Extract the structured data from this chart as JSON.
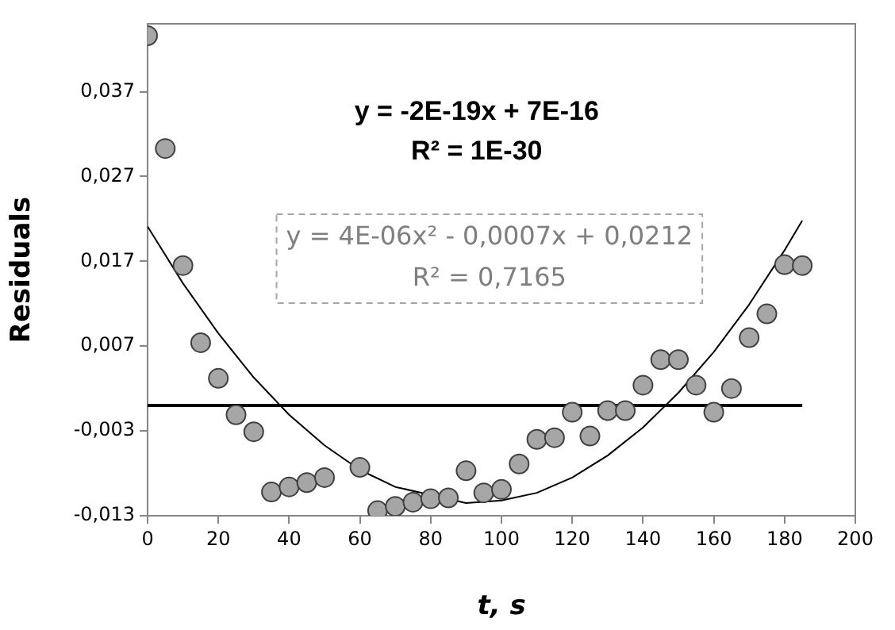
{
  "chart_data": {
    "type": "scatter",
    "xlabel": "t, s",
    "ylabel": "Residuals",
    "xlim": [
      0,
      200
    ],
    "xticks": [
      0,
      20,
      40,
      60,
      80,
      100,
      120,
      140,
      160,
      180,
      200
    ],
    "ylim": [
      -0.013,
      0.045
    ],
    "yticks": [
      {
        "value": -0.013,
        "label": "-0,013"
      },
      {
        "value": -0.003,
        "label": "-0,003"
      },
      {
        "value": 0.007,
        "label": "0,007"
      },
      {
        "value": 0.017,
        "label": "0,017"
      },
      {
        "value": 0.027,
        "label": "0,027"
      },
      {
        "value": 0.037,
        "label": "0,037"
      }
    ],
    "grid": false,
    "legend": false,
    "annotations": [
      "y = -2E-19x + 7E-16\nR² = 1E-30",
      "y = 4E-06x² - 0,0007x + 0,0212\nR² = 0,7165"
    ],
    "series": [
      {
        "type": "scatter",
        "marker": "circle",
        "color": "#a6a6a6",
        "x": [
          0,
          5,
          10,
          15,
          20,
          25,
          30,
          35,
          40,
          45,
          50,
          60,
          65,
          70,
          75,
          80,
          85,
          90,
          95,
          100,
          105,
          110,
          115,
          120,
          125,
          130,
          135,
          140,
          145,
          150,
          155,
          160,
          165,
          170,
          175,
          180,
          185
        ],
        "values": [
          0.0436,
          0.0303,
          0.0165,
          0.0074,
          0.0032,
          -0.0011,
          -0.0031,
          -0.0102,
          -0.0096,
          -0.0091,
          -0.0085,
          -0.0073,
          -0.0124,
          -0.0119,
          -0.0114,
          -0.011,
          -0.0109,
          -0.0077,
          -0.0103,
          -0.0099,
          -0.0069,
          -0.004,
          -0.0038,
          -0.0008,
          -0.0036,
          -0.0006,
          -0.0006,
          0.0024,
          0.0054,
          0.0054,
          0.0024,
          -0.0008,
          0.002,
          0.008,
          0.0108,
          0.0166,
          0.0165
        ]
      },
      {
        "type": "line",
        "marker": "none",
        "line_style": "solid",
        "color": "#000000",
        "x": [
          0,
          185
        ],
        "values": [
          0,
          0
        ]
      },
      {
        "type": "line",
        "marker": "none",
        "line_style": "solid",
        "color": "#000000",
        "x": [
          0,
          10,
          20,
          30,
          40,
          50,
          60,
          70,
          90,
          100,
          110,
          120,
          130,
          140,
          150,
          160,
          170,
          180,
          185
        ],
        "values": [
          0.0211,
          0.0144,
          0.0085,
          0.0033,
          -0.0011,
          -0.0047,
          -0.0076,
          -0.0096,
          -0.0115,
          -0.0112,
          -0.0103,
          -0.0085,
          -0.0059,
          -0.0026,
          0.0015,
          0.0063,
          0.0119,
          0.0183,
          0.0218
        ]
      }
    ]
  }
}
